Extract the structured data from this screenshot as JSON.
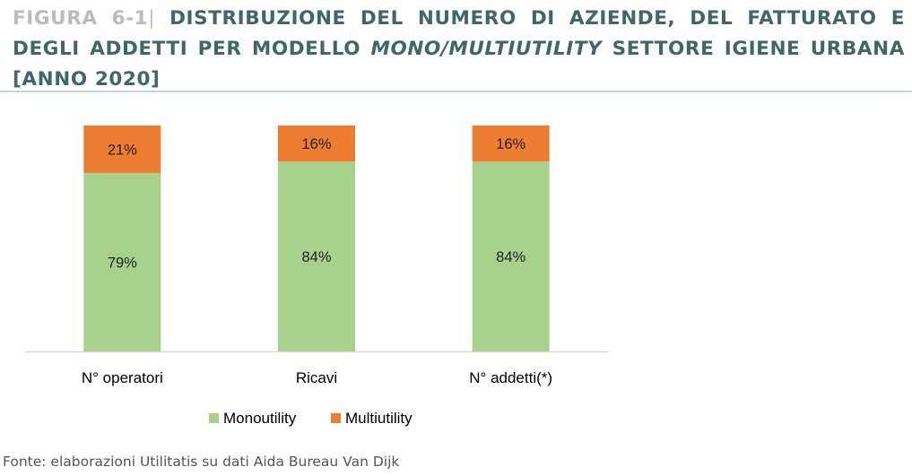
{
  "figure": {
    "label": "FIGURA 6-1",
    "separator": "|",
    "title_part1": "DISTRIBUZIONE DEL NUMERO DI AZIENDE, DEL FATTURATO E DEGLI ADDETTI PER MODELLO ",
    "title_italic": "MONO/MULTIUTILITY",
    "title_part2": " SETTORE IGIENE URBANA [ANNO 2020]"
  },
  "source": "Fonte: elaborazioni Utilitatis su dati Aida Bureau Van Dijk",
  "colors": {
    "title": "#3f6669",
    "figure_label": "#bcbcbc",
    "monoutility": "#a9d18e",
    "multiutility": "#ed7d31",
    "axis": "#d9d9d9"
  },
  "chart_data": {
    "type": "bar",
    "stacked": true,
    "percent": true,
    "categories": [
      "N° operatori",
      "Ricavi",
      "N° addetti(*)"
    ],
    "series": [
      {
        "name": "Monoutility",
        "values": [
          79,
          84,
          84
        ],
        "labels": [
          "79%",
          "84%",
          "84%"
        ]
      },
      {
        "name": "Multiutility",
        "values": [
          21,
          16,
          16
        ],
        "labels": [
          "21%",
          "16%",
          "16%"
        ]
      }
    ],
    "ylim": [
      0,
      100
    ],
    "grid": false,
    "legend": "bottom"
  }
}
